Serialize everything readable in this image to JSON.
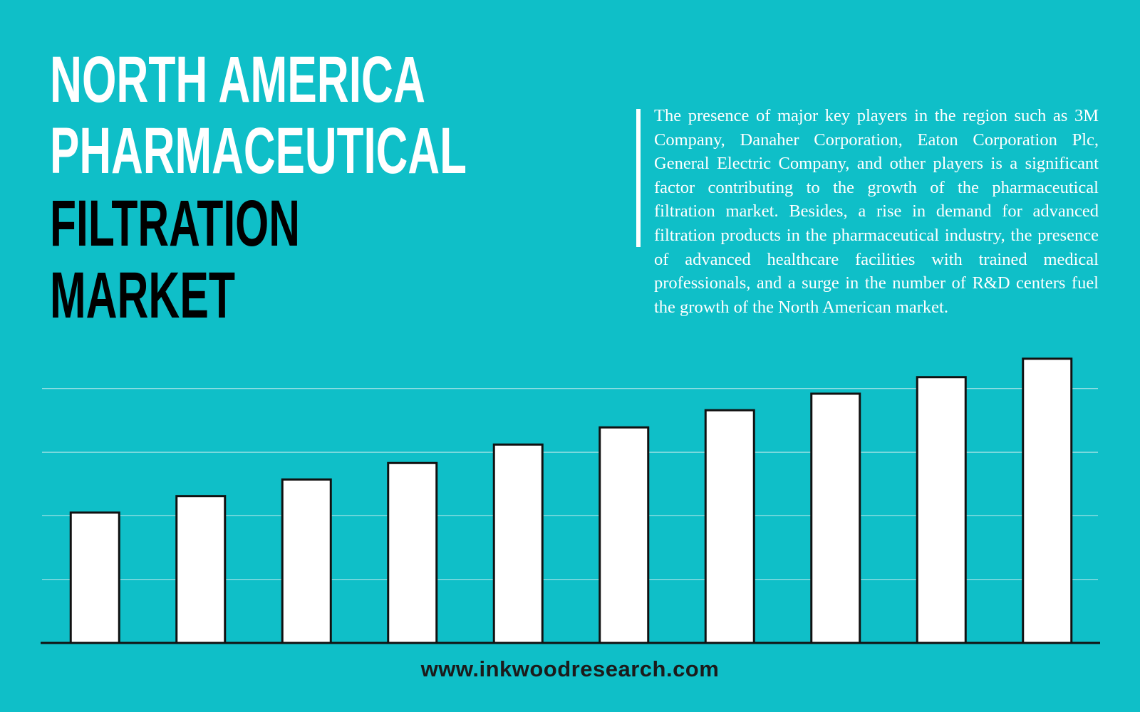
{
  "title_lines": [
    "NORTH AMERICA",
    "PHARMACEUTICAL",
    "FILTRATION",
    "MARKET"
  ],
  "description": "The presence of major key players in the region such as 3M Company, Danaher Corporation, Eaton Corporation Plc, General Electric Company, and other players is a significant factor contributing to the growth of the pharmaceutical filtration market. Besides, a rise in demand for advanced filtration products in the pharmaceutical industry, the presence of advanced healthcare facilities with trained medical professionals, and a surge in the number of R&D centers fuel the growth of the North American market.",
  "website": "www.inkwoodresearch.com",
  "chart_data": {
    "type": "bar",
    "categories": [
      null,
      null,
      null,
      null,
      null,
      null,
      null,
      null,
      null,
      null
    ],
    "values": [
      2.05,
      2.31,
      2.57,
      2.83,
      3.12,
      3.39,
      3.66,
      3.92,
      4.18,
      4.47
    ],
    "color": "#ffffff",
    "ylim": [
      0,
      4.5
    ],
    "yticks": [
      1,
      2,
      3,
      4
    ],
    "grid": true
  }
}
